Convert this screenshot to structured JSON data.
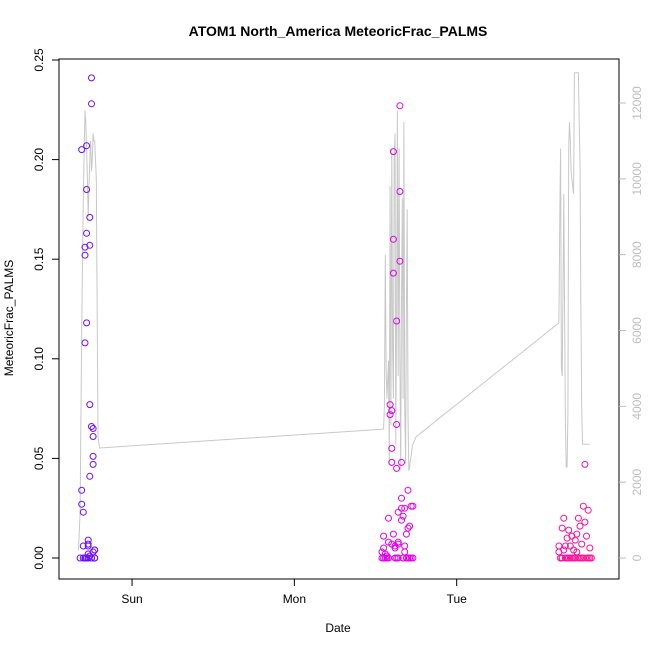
{
  "chart_data": {
    "type": "scatter",
    "title": "ATOM1 North_America MeteoricFrac_PALMS",
    "xlabel": "Date",
    "ylabel": "MeteoricFrac_PALMS",
    "x_ticks": [
      "Sun",
      "Mon",
      "Tue"
    ],
    "ylim": [
      0,
      0.25
    ],
    "y_ticks": [
      "0.00",
      "0.05",
      "0.10",
      "0.15",
      "0.20",
      "0.25"
    ],
    "y2lim": [
      0,
      12000
    ],
    "y2_ticks": [
      "0",
      "2000",
      "4000",
      "6000",
      "8000",
      "10000",
      "12000"
    ],
    "colors": {
      "frame": "#000000",
      "altitude_line": "#c8c8c8",
      "right_axis": "#bdbdbd",
      "series_start": "#6a0dff",
      "series_mid": "#d400ff",
      "series_end": "#ff1493"
    },
    "series": [
      {
        "x": [
          -0.32,
          -0.31,
          -0.31,
          -0.31,
          -0.3,
          -0.3,
          -0.3,
          -0.29,
          -0.29,
          -0.29,
          -0.29,
          -0.29,
          -0.28,
          -0.28,
          -0.28,
          -0.28,
          -0.28,
          -0.27,
          -0.27,
          -0.27,
          -0.27,
          -0.27,
          -0.26,
          -0.26,
          -0.26,
          -0.26,
          -0.26,
          -0.25,
          -0.25,
          -0.25,
          -0.25,
          -0.25,
          -0.24,
          -0.24,
          -0.24,
          -0.24,
          -0.24,
          -0.23,
          -0.23,
          -0.23,
          -0.23
        ],
        "y": [
          0.0,
          0.205,
          0.034,
          0.027,
          0.023,
          0.006,
          0.0,
          0.0,
          0.108,
          0.152,
          0.156,
          0.0,
          0.118,
          0.185,
          0.207,
          0.163,
          0.0,
          0.002,
          0.009,
          0.007,
          0.006,
          0.0,
          0.001,
          0.041,
          0.077,
          0.171,
          0.157,
          0.241,
          0.228,
          0.066,
          0.0,
          0.0,
          0.061,
          0.047,
          0.051,
          0.065,
          0.003,
          0.004,
          0.004,
          0.0,
          0.0
        ]
      },
      {
        "x": [
          1.54,
          1.54,
          1.55,
          1.55,
          1.55,
          1.56,
          1.56,
          1.57,
          1.57,
          1.58,
          1.58,
          1.58,
          1.59,
          1.59,
          1.6,
          1.6,
          1.6,
          1.6,
          1.61,
          1.61,
          1.61,
          1.61,
          1.62,
          1.62,
          1.62,
          1.63,
          1.63,
          1.63,
          1.63,
          1.64,
          1.64,
          1.64,
          1.64,
          1.65,
          1.65,
          1.65,
          1.66,
          1.66,
          1.66,
          1.66,
          1.67,
          1.67,
          1.67,
          1.68,
          1.68,
          1.68,
          1.69,
          1.69,
          1.7,
          1.7,
          1.7,
          1.71,
          1.71,
          1.72,
          1.72,
          1.73,
          1.73
        ],
        "y": [
          0.0,
          0.003,
          0.011,
          0.005,
          0.0,
          0.0,
          0.002,
          0.001,
          0.0,
          0.02,
          0.008,
          0.0,
          0.072,
          0.077,
          0.074,
          0.055,
          0.048,
          0.007,
          0.204,
          0.16,
          0.143,
          0.012,
          0.005,
          0.0,
          0.006,
          0.119,
          0.067,
          0.045,
          0.0,
          0.008,
          0.023,
          0.0,
          0.007,
          0.227,
          0.184,
          0.149,
          0.048,
          0.025,
          0.03,
          0.019,
          0.0,
          0.021,
          0.0,
          0.003,
          0.006,
          0.025,
          0.0,
          0.012,
          0.034,
          0.015,
          0.0,
          0.016,
          0.0,
          0.026,
          0.0,
          0.026,
          0.0
        ]
      },
      {
        "x": [
          2.63,
          2.63,
          2.64,
          2.64,
          2.65,
          2.65,
          2.66,
          2.66,
          2.67,
          2.67,
          2.68,
          2.68,
          2.69,
          2.69,
          2.7,
          2.7,
          2.71,
          2.71,
          2.72,
          2.72,
          2.73,
          2.73,
          2.74,
          2.74,
          2.75,
          2.75,
          2.76,
          2.76,
          2.77,
          2.77,
          2.78,
          2.78,
          2.79,
          2.79,
          2.8,
          2.8,
          2.81,
          2.81,
          2.82,
          2.82,
          2.83
        ],
        "y": [
          0.006,
          0.003,
          0.0,
          0.0,
          0.0,
          0.015,
          0.02,
          0.004,
          0.0,
          0.006,
          0.0,
          0.01,
          0.0,
          0.014,
          0.0,
          0.006,
          0.0,
          0.011,
          0.004,
          0.0,
          0.009,
          0.0,
          0.003,
          0.012,
          0.0,
          0.02,
          0.0,
          0.016,
          0.007,
          0.0,
          0.026,
          0.0,
          0.018,
          0.047,
          0.011,
          0.0,
          0.024,
          0.0,
          0.005,
          0.0,
          0.0
        ]
      }
    ],
    "altitude_line": {
      "axis": "right",
      "x": [
        -0.33,
        -0.32,
        -0.31,
        -0.3,
        -0.29,
        -0.285,
        -0.28,
        -0.275,
        -0.27,
        -0.26,
        -0.255,
        -0.25,
        -0.245,
        -0.24,
        -0.235,
        -0.23,
        -0.225,
        -0.22,
        -0.21,
        -0.2,
        1.55,
        1.555,
        1.56,
        1.565,
        1.57,
        1.58,
        1.585,
        1.59,
        1.595,
        1.6,
        1.605,
        1.61,
        1.615,
        1.62,
        1.625,
        1.63,
        1.635,
        1.64,
        1.645,
        1.65,
        1.655,
        1.66,
        1.665,
        1.67,
        1.675,
        1.68,
        1.685,
        1.69,
        1.695,
        1.7,
        1.705,
        1.71,
        1.715,
        1.72,
        1.725,
        1.73,
        1.74,
        1.75,
        2.63,
        2.635,
        2.64,
        2.645,
        2.65,
        2.655,
        2.66,
        2.665,
        2.67,
        2.675,
        2.68,
        2.685,
        2.69,
        2.695,
        2.7,
        2.705,
        2.71,
        2.715,
        2.72,
        2.725,
        2.73,
        2.735,
        2.74,
        2.745,
        2.75,
        2.755,
        2.76,
        2.765,
        2.77,
        2.775,
        2.78,
        2.785,
        2.79,
        2.795,
        2.8,
        2.805,
        2.81,
        2.815,
        2.82
      ],
      "y": [
        200,
        1200,
        6000,
        9500,
        11800,
        11500,
        10800,
        10000,
        9000,
        10500,
        11000,
        10200,
        10500,
        11200,
        11000,
        11000,
        10500,
        10000,
        3200,
        2900,
        3400,
        4000,
        8000,
        5000,
        4200,
        5200,
        2500,
        9800,
        3500,
        10800,
        5500,
        4200,
        10500,
        11200,
        3000,
        6500,
        11800,
        4800,
        10800,
        5200,
        2300,
        6800,
        9500,
        4200,
        11500,
        4000,
        2500,
        6500,
        9200,
        3800,
        2300,
        2400,
        2600,
        2700,
        2900,
        3000,
        3100,
        3200,
        6200,
        9000,
        10800,
        5000,
        4800,
        7000,
        9600,
        6500,
        3600,
        2400,
        2400,
        3800,
        10800,
        11500,
        11000,
        10200,
        10000,
        9800,
        9600,
        12800,
        12800,
        12800,
        12800,
        12800,
        12800,
        11500,
        10500,
        6500,
        4000,
        3000,
        3000,
        3000,
        3000,
        3000,
        3000,
        3000,
        3000,
        3000,
        3000
      ]
    }
  }
}
